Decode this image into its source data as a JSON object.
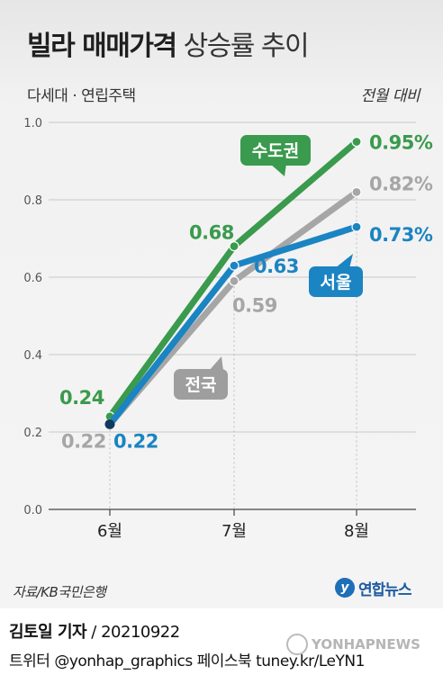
{
  "title": {
    "bold": "빌라 매매가격",
    "light": "상승률 추이"
  },
  "subtitle_left": "다세대 · 연립주택",
  "subtitle_right": "전월 대비",
  "chart_data": {
    "type": "line",
    "title": "빌라 매매가격 상승률 추이",
    "categories": [
      "6월",
      "7월",
      "8월"
    ],
    "ylim": [
      0,
      1.0
    ],
    "yticks": [
      "0.0",
      "0.2",
      "0.4",
      "0.6",
      "0.8",
      "1.0"
    ],
    "ytick_values": [
      0,
      0.2,
      0.4,
      0.6,
      0.8,
      1.0
    ],
    "grid": true,
    "series": [
      {
        "name": "수도권",
        "values": [
          0.24,
          0.68,
          0.95
        ],
        "labels": [
          "0.24",
          "0.68",
          "0.95%"
        ],
        "color": "#3a9a4d"
      },
      {
        "name": "전국",
        "values": [
          0.22,
          0.59,
          0.82
        ],
        "labels": [
          "0.22",
          "0.59",
          "0.82%"
        ],
        "color": "#a6a6a6"
      },
      {
        "name": "서울",
        "values": [
          0.22,
          0.63,
          0.73
        ],
        "labels": [
          "0.22",
          "0.63",
          "0.73%"
        ],
        "color": "#1b84c2"
      }
    ]
  },
  "source": "자료/KB국민은행",
  "logo": {
    "mark": "y",
    "text": "연합뉴스"
  },
  "byline": {
    "author": "김토일 기자",
    "date": "20210922"
  },
  "social": "트위터 @yonhap_graphics  페이스북 tuney.kr/LeYN1",
  "watermark": "YONHAPNEWS",
  "colors": {
    "dark_navy": "#123a5e"
  }
}
